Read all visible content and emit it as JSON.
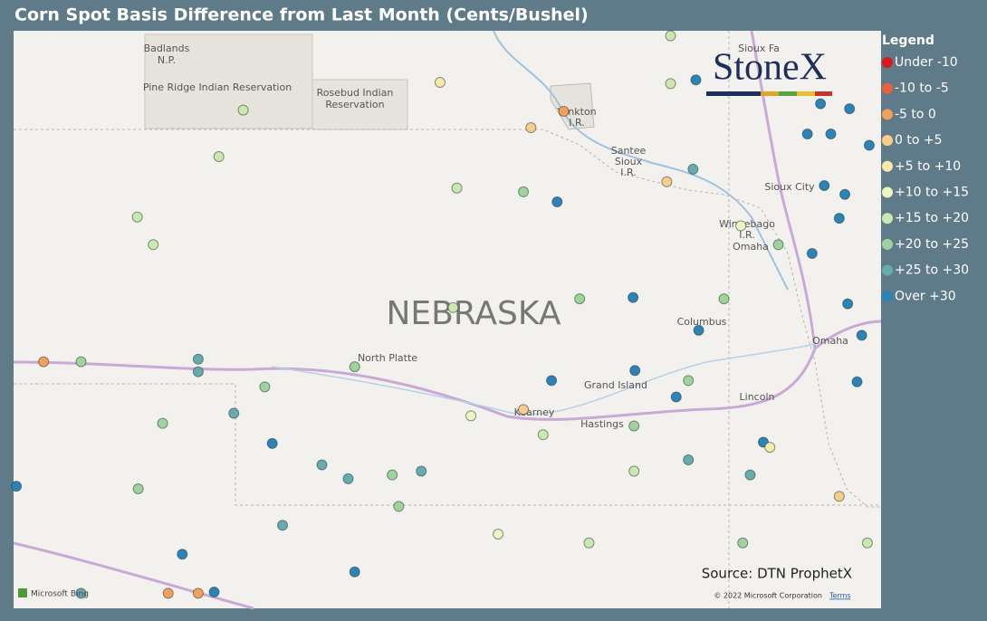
{
  "title": "Corn Spot Basis Difference from Last Month (Cents/Bushel)",
  "legend": {
    "title": "Legend",
    "items": [
      {
        "name": "Under -10",
        "color": "#d7191c"
      },
      {
        "name": "-10 to -5",
        "color": "#e8613c"
      },
      {
        "name": "-5 to 0",
        "color": "#f59f5b"
      },
      {
        "name": "0 to +5",
        "color": "#f8cc8a"
      },
      {
        "name": "+5 to +10",
        "color": "#f7eaa9"
      },
      {
        "name": "+10 to +15",
        "color": "#eef5c2"
      },
      {
        "name": "+15 to +20",
        "color": "#cde8ae"
      },
      {
        "name": "+20 to +25",
        "color": "#9fd39d"
      },
      {
        "name": "+25 to +30",
        "color": "#66abb0"
      },
      {
        "name": "Over +30",
        "color": "#2b83ba"
      }
    ]
  },
  "logo": "StoneX",
  "places": [
    "Badlands",
    "N.P.",
    "Pine Ridge Indian Reservation",
    "Rosebud Indian",
    "Reservation",
    "NEBRASKA",
    "North Platte",
    "Grand Island",
    "Kearney",
    "Hastings",
    "Columbus",
    "Lincoln",
    "Omaha",
    "Sioux City",
    "Yankton",
    "I.R.",
    "Santee",
    "Sioux",
    "I.R.",
    "Winnebago",
    "I.R.",
    "Omaha",
    "Sioux Fa"
  ],
  "source": "Source: DTN ProphetX",
  "copyright": "© 2022 Microsoft Corporation",
  "terms": "Terms",
  "bing": "Microsoft Bing",
  "points": [
    [
      -104.17,
      41.1,
      2
    ],
    [
      -102.04,
      43.1,
      6
    ],
    [
      -102.3,
      42.73,
      6
    ],
    [
      -103.17,
      42.25,
      6
    ],
    [
      -103.0,
      42.03,
      6
    ],
    [
      -103.77,
      41.1,
      7
    ],
    [
      -102.52,
      41.12,
      8
    ],
    [
      -102.52,
      41.02,
      8
    ],
    [
      -101.81,
      40.9,
      7
    ],
    [
      -102.14,
      40.69,
      8
    ],
    [
      -101.73,
      40.45,
      9
    ],
    [
      -101.2,
      40.28,
      8
    ],
    [
      -100.92,
      40.17,
      8
    ],
    [
      -103.16,
      40.09,
      7
    ],
    [
      -102.69,
      39.57,
      9
    ],
    [
      -104.46,
      40.11,
      9
    ],
    [
      -102.84,
      39.26,
      2
    ],
    [
      -102.52,
      39.26,
      2
    ],
    [
      -102.35,
      39.27,
      9
    ],
    [
      -101.62,
      39.8,
      8
    ],
    [
      -100.85,
      41.06,
      7
    ],
    [
      -99.94,
      43.32,
      4
    ],
    [
      -98.97,
      42.96,
      3
    ],
    [
      -98.62,
      43.09,
      2
    ],
    [
      -98.69,
      42.37,
      9
    ],
    [
      -99.05,
      42.45,
      7
    ],
    [
      -99.76,
      42.48,
      6
    ],
    [
      -99.05,
      40.72,
      3
    ],
    [
      -98.75,
      40.95,
      9
    ],
    [
      -97.86,
      41.03,
      9
    ],
    [
      -97.88,
      41.61,
      9
    ],
    [
      -97.52,
      42.53,
      3
    ],
    [
      -97.24,
      42.63,
      8
    ],
    [
      -96.73,
      42.18,
      5
    ],
    [
      -97.18,
      41.35,
      9
    ],
    [
      -97.42,
      40.82,
      9
    ],
    [
      -97.29,
      40.32,
      8
    ],
    [
      -96.63,
      40.2,
      8
    ],
    [
      -96.49,
      40.46,
      9
    ],
    [
      -96.42,
      40.42,
      4
    ],
    [
      -95.97,
      41.96,
      9
    ],
    [
      -95.84,
      42.5,
      9
    ],
    [
      -96.02,
      42.91,
      9
    ],
    [
      -95.77,
      42.91,
      9
    ],
    [
      -95.57,
      43.11,
      9
    ],
    [
      -95.62,
      42.43,
      9
    ],
    [
      -95.68,
      42.24,
      9
    ],
    [
      -95.59,
      41.56,
      9
    ],
    [
      -95.44,
      41.31,
      9
    ],
    [
      -95.49,
      40.94,
      9
    ],
    [
      -95.68,
      40.03,
      3
    ],
    [
      -95.36,
      42.82,
      9
    ],
    [
      -95.88,
      43.15,
      9
    ],
    [
      -97.21,
      43.34,
      9
    ],
    [
      -97.48,
      43.69,
      6
    ],
    [
      -96.33,
      42.03,
      7
    ],
    [
      -96.91,
      41.6,
      7
    ],
    [
      -98.45,
      41.6,
      7
    ],
    [
      -99.8,
      41.53,
      6
    ],
    [
      -100.14,
      40.23,
      8
    ],
    [
      -100.45,
      40.2,
      7
    ],
    [
      -99.61,
      40.67,
      5
    ],
    [
      -98.84,
      40.52,
      6
    ],
    [
      -97.87,
      40.23,
      6
    ],
    [
      -98.35,
      39.66,
      6
    ],
    [
      -99.32,
      39.73,
      5
    ],
    [
      -96.71,
      39.66,
      7
    ],
    [
      -97.87,
      40.59,
      7
    ],
    [
      -97.29,
      40.95,
      7
    ],
    [
      -102.9,
      40.61,
      7
    ],
    [
      -103.77,
      39.26,
      8
    ],
    [
      -100.85,
      39.43,
      9
    ],
    [
      -97.48,
      43.31,
      6
    ],
    [
      -100.38,
      39.95,
      7
    ],
    [
      -95.38,
      39.66,
      6
    ]
  ]
}
